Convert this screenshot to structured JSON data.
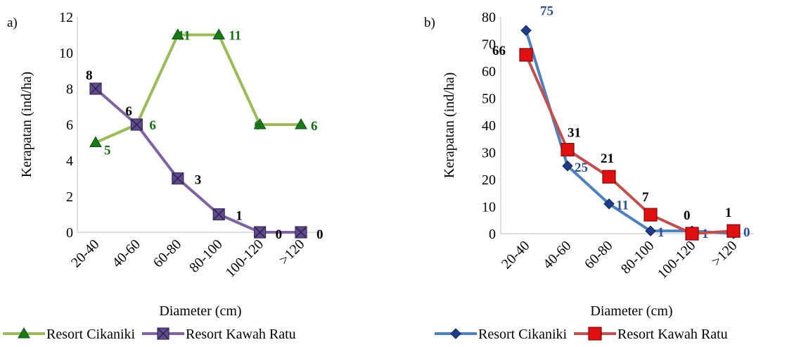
{
  "chart_data": [
    {
      "panel_label": "a)",
      "type": "line",
      "categories": [
        "20-40",
        "40-60",
        "60-80",
        "80-100",
        "100-120",
        ">120"
      ],
      "ylim": [
        0,
        12
      ],
      "yticks": [
        0,
        2,
        4,
        6,
        8,
        10,
        12
      ],
      "xlabel": "Diameter (cm)",
      "ylabel": "Kerapatan (ind/ha)",
      "grid": false,
      "legend_position": "bottom",
      "series": [
        {
          "name": "Resort Cikaniki",
          "values": [
            5,
            6,
            11,
            11,
            6,
            6
          ],
          "labels": [
            "5",
            "6",
            "11",
            "11",
            "6",
            "6"
          ],
          "line_color": "#9BBB59",
          "marker": "triangle",
          "marker_color": "#1A7A1A",
          "label_color": "#1A6E1A"
        },
        {
          "name": "Resort Kawah Ratu",
          "values": [
            8,
            6,
            3,
            1,
            0,
            0
          ],
          "labels": [
            "8",
            "6",
            "3",
            "1",
            "0",
            "0"
          ],
          "line_color": "#8064A2",
          "marker": "square-x",
          "marker_color": "#5F4B8B",
          "label_color": "#000000"
        }
      ]
    },
    {
      "panel_label": "b)",
      "type": "line",
      "categories": [
        "20-40",
        "40-60",
        "60-80",
        "80-100",
        "100-120",
        ">120"
      ],
      "ylim": [
        0,
        80
      ],
      "yticks": [
        0,
        10,
        20,
        30,
        40,
        50,
        60,
        70,
        80
      ],
      "xlabel": "Diameter (cm)",
      "ylabel": "Kerapatan (ind/ha)",
      "grid": false,
      "legend_position": "bottom",
      "series": [
        {
          "name": "Resort Cikaniki",
          "values": [
            75,
            25,
            11,
            1,
            1,
            0
          ],
          "labels": [
            "75",
            "25",
            "11",
            "1",
            "1",
            "0"
          ],
          "line_color": "#4F81BD",
          "marker": "diamond",
          "marker_color": "#1F3C88",
          "label_color": "#2E4F8F"
        },
        {
          "name": "Resort Kawah Ratu",
          "values": [
            66,
            31,
            21,
            7,
            0,
            1
          ],
          "labels": [
            "66",
            "31",
            "21",
            "7",
            "0",
            "1"
          ],
          "line_color": "#C0504D",
          "marker": "square",
          "marker_color": "#E01010",
          "label_color": "#000000"
        }
      ]
    }
  ]
}
